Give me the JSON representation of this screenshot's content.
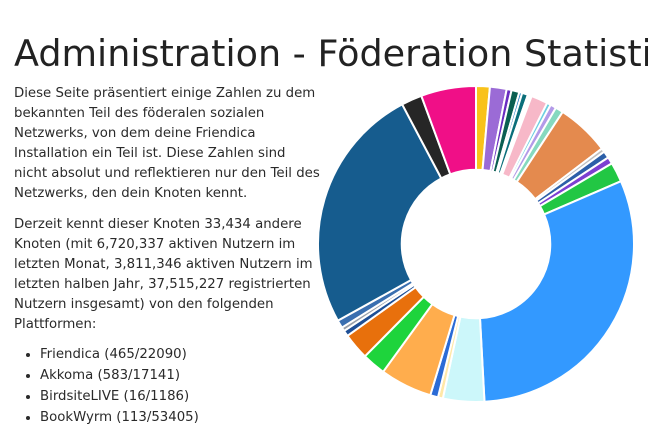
{
  "page": {
    "title": "Administration - Föderation Statistik",
    "intro": "Diese Seite präsentiert einige Zahlen zu dem bekannten Teil des föderalen sozialen Netzwerks, von dem deine Friendica Installation ein Teil ist. Diese Zahlen sind nicht absolut und reflektieren nur den Teil des Netzwerks, den dein Knoten kennt.",
    "summary": "Derzeit kennt dieser Knoten 33,434 andere Knoten (mit 6,720,337 aktiven Nutzern im letzten Monat, 3,811,346 aktiven Nutzern im letzten halben Jahr, 37,515,227 registrierten Nutzern insgesamt) von den folgenden Plattformen:",
    "platforms": [
      "Friendica (465/22090)",
      "Akkoma (583/17141)",
      "BirdsiteLIVE (16/1186)",
      "BookWyrm (113/53405)"
    ]
  },
  "chart_data": {
    "type": "pie",
    "subtype": "doughnut",
    "hole_ratio": 0.47,
    "start": "12 o'clock, clockwise",
    "slices": [
      {
        "value": 1.4,
        "color": "#f9c21a"
      },
      {
        "value": 1.7,
        "color": "#9b6bd6"
      },
      {
        "value": 0.5,
        "color": "#6a2cc0"
      },
      {
        "value": 0.8,
        "color": "#0b5f52"
      },
      {
        "value": 0.3,
        "color": "#1f7ac4"
      },
      {
        "value": 0.6,
        "color": "#0b6e7a"
      },
      {
        "value": 0.4,
        "color": "#ffffff"
      },
      {
        "value": 1.7,
        "color": "#f7b8c8"
      },
      {
        "value": 0.4,
        "color": "#6ccfe0"
      },
      {
        "value": 0.6,
        "color": "#b39ae8"
      },
      {
        "value": 0.8,
        "color": "#86d9bf"
      },
      {
        "value": 5.4,
        "color": "#e48a4e"
      },
      {
        "value": 0.4,
        "color": "#c0c0c0"
      },
      {
        "value": 0.7,
        "color": "#2d5fa8"
      },
      {
        "value": 0.7,
        "color": "#7d3fd1"
      },
      {
        "value": 2.0,
        "color": "#22c744"
      },
      {
        "value": 30.5,
        "color": "#3399ff"
      },
      {
        "value": 4.2,
        "color": "#ccf7fa"
      },
      {
        "value": 0.5,
        "color": "#ffe8a8"
      },
      {
        "value": 0.8,
        "color": "#2b6bd6"
      },
      {
        "value": 5.3,
        "color": "#ffad4d"
      },
      {
        "value": 2.4,
        "color": "#1ed43c"
      },
      {
        "value": 2.7,
        "color": "#e8700c"
      },
      {
        "value": 0.6,
        "color": "#1e4f96"
      },
      {
        "value": 0.4,
        "color": "#9aa0aa"
      },
      {
        "value": 0.8,
        "color": "#3a6fb0"
      },
      {
        "value": 25.2,
        "color": "#165c8e"
      },
      {
        "value": 2.1,
        "color": "#262626"
      },
      {
        "value": 5.6,
        "color": "#f00f87"
      }
    ]
  }
}
